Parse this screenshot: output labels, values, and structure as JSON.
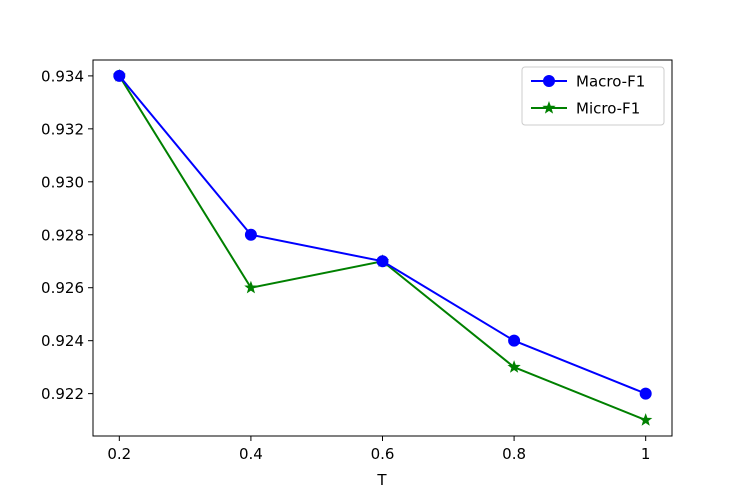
{
  "chart_data": {
    "type": "line",
    "title": "",
    "xlabel": "T",
    "ylabel": "",
    "x": [
      0.2,
      0.4,
      0.6,
      0.8,
      1.0
    ],
    "x_tick_labels": [
      "0.2",
      "0.4",
      "0.6",
      "0.8",
      "1"
    ],
    "y_ticks": [
      0.922,
      0.924,
      0.926,
      0.928,
      0.93,
      0.932,
      0.934
    ],
    "y_tick_labels": [
      "0.922",
      "0.924",
      "0.926",
      "0.928",
      "0.930",
      "0.932",
      "0.934"
    ],
    "xlim": [
      0.16,
      1.04
    ],
    "ylim": [
      0.9204,
      0.9346
    ],
    "grid": false,
    "legend_position": "top-right",
    "series": [
      {
        "name": "Macro-F1",
        "color": "#0000ff",
        "marker": "circle",
        "values": [
          0.934,
          0.928,
          0.927,
          0.924,
          0.922
        ]
      },
      {
        "name": "Micro-F1",
        "color": "#008000",
        "marker": "star",
        "values": [
          0.934,
          0.926,
          0.927,
          0.923,
          0.921
        ]
      }
    ]
  }
}
